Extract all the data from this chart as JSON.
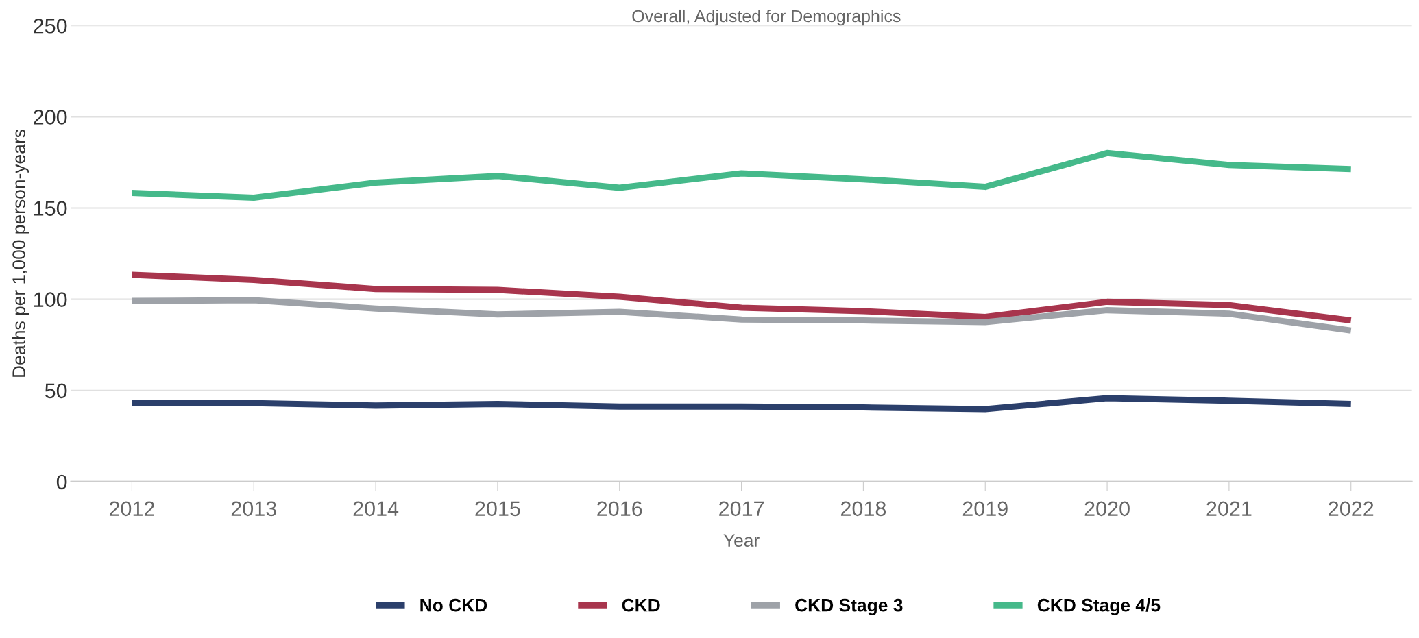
{
  "chart_data": {
    "type": "line",
    "title": "Overall, Adjusted for Demographics",
    "xlabel": "Year",
    "ylabel": "Deaths per 1,000 person-years",
    "categories": [
      "2012",
      "2013",
      "2014",
      "2015",
      "2016",
      "2017",
      "2018",
      "2019",
      "2020",
      "2021",
      "2022"
    ],
    "series": [
      {
        "name": "No CKD",
        "color": "#2b3f6b",
        "values": [
          43.1,
          43.1,
          41.7,
          42.6,
          41.2,
          41.2,
          40.7,
          39.8,
          45.8,
          44.4,
          42.6
        ]
      },
      {
        "name": "CKD",
        "color": "#a8354d",
        "values": [
          113.4,
          110.6,
          105.6,
          105.1,
          101.4,
          95.4,
          93.5,
          90.3,
          98.6,
          96.8,
          88.4
        ]
      },
      {
        "name": "CKD Stage 3",
        "color": "#9ea2a8",
        "values": [
          99.1,
          99.5,
          94.9,
          91.7,
          93.1,
          88.9,
          88.4,
          87.5,
          94.0,
          92.1,
          82.9
        ]
      },
      {
        "name": "CKD Stage 4/5",
        "color": "#45b98a",
        "values": [
          158.3,
          155.6,
          163.9,
          167.6,
          161.1,
          169.0,
          165.7,
          161.6,
          180.1,
          173.6,
          171.3
        ]
      }
    ],
    "ylim": [
      0,
      250
    ],
    "yticks": [
      0,
      50,
      100,
      150,
      200,
      250
    ],
    "grid": "y",
    "legend": "bottom",
    "marker": "none",
    "line_style": "solid"
  }
}
